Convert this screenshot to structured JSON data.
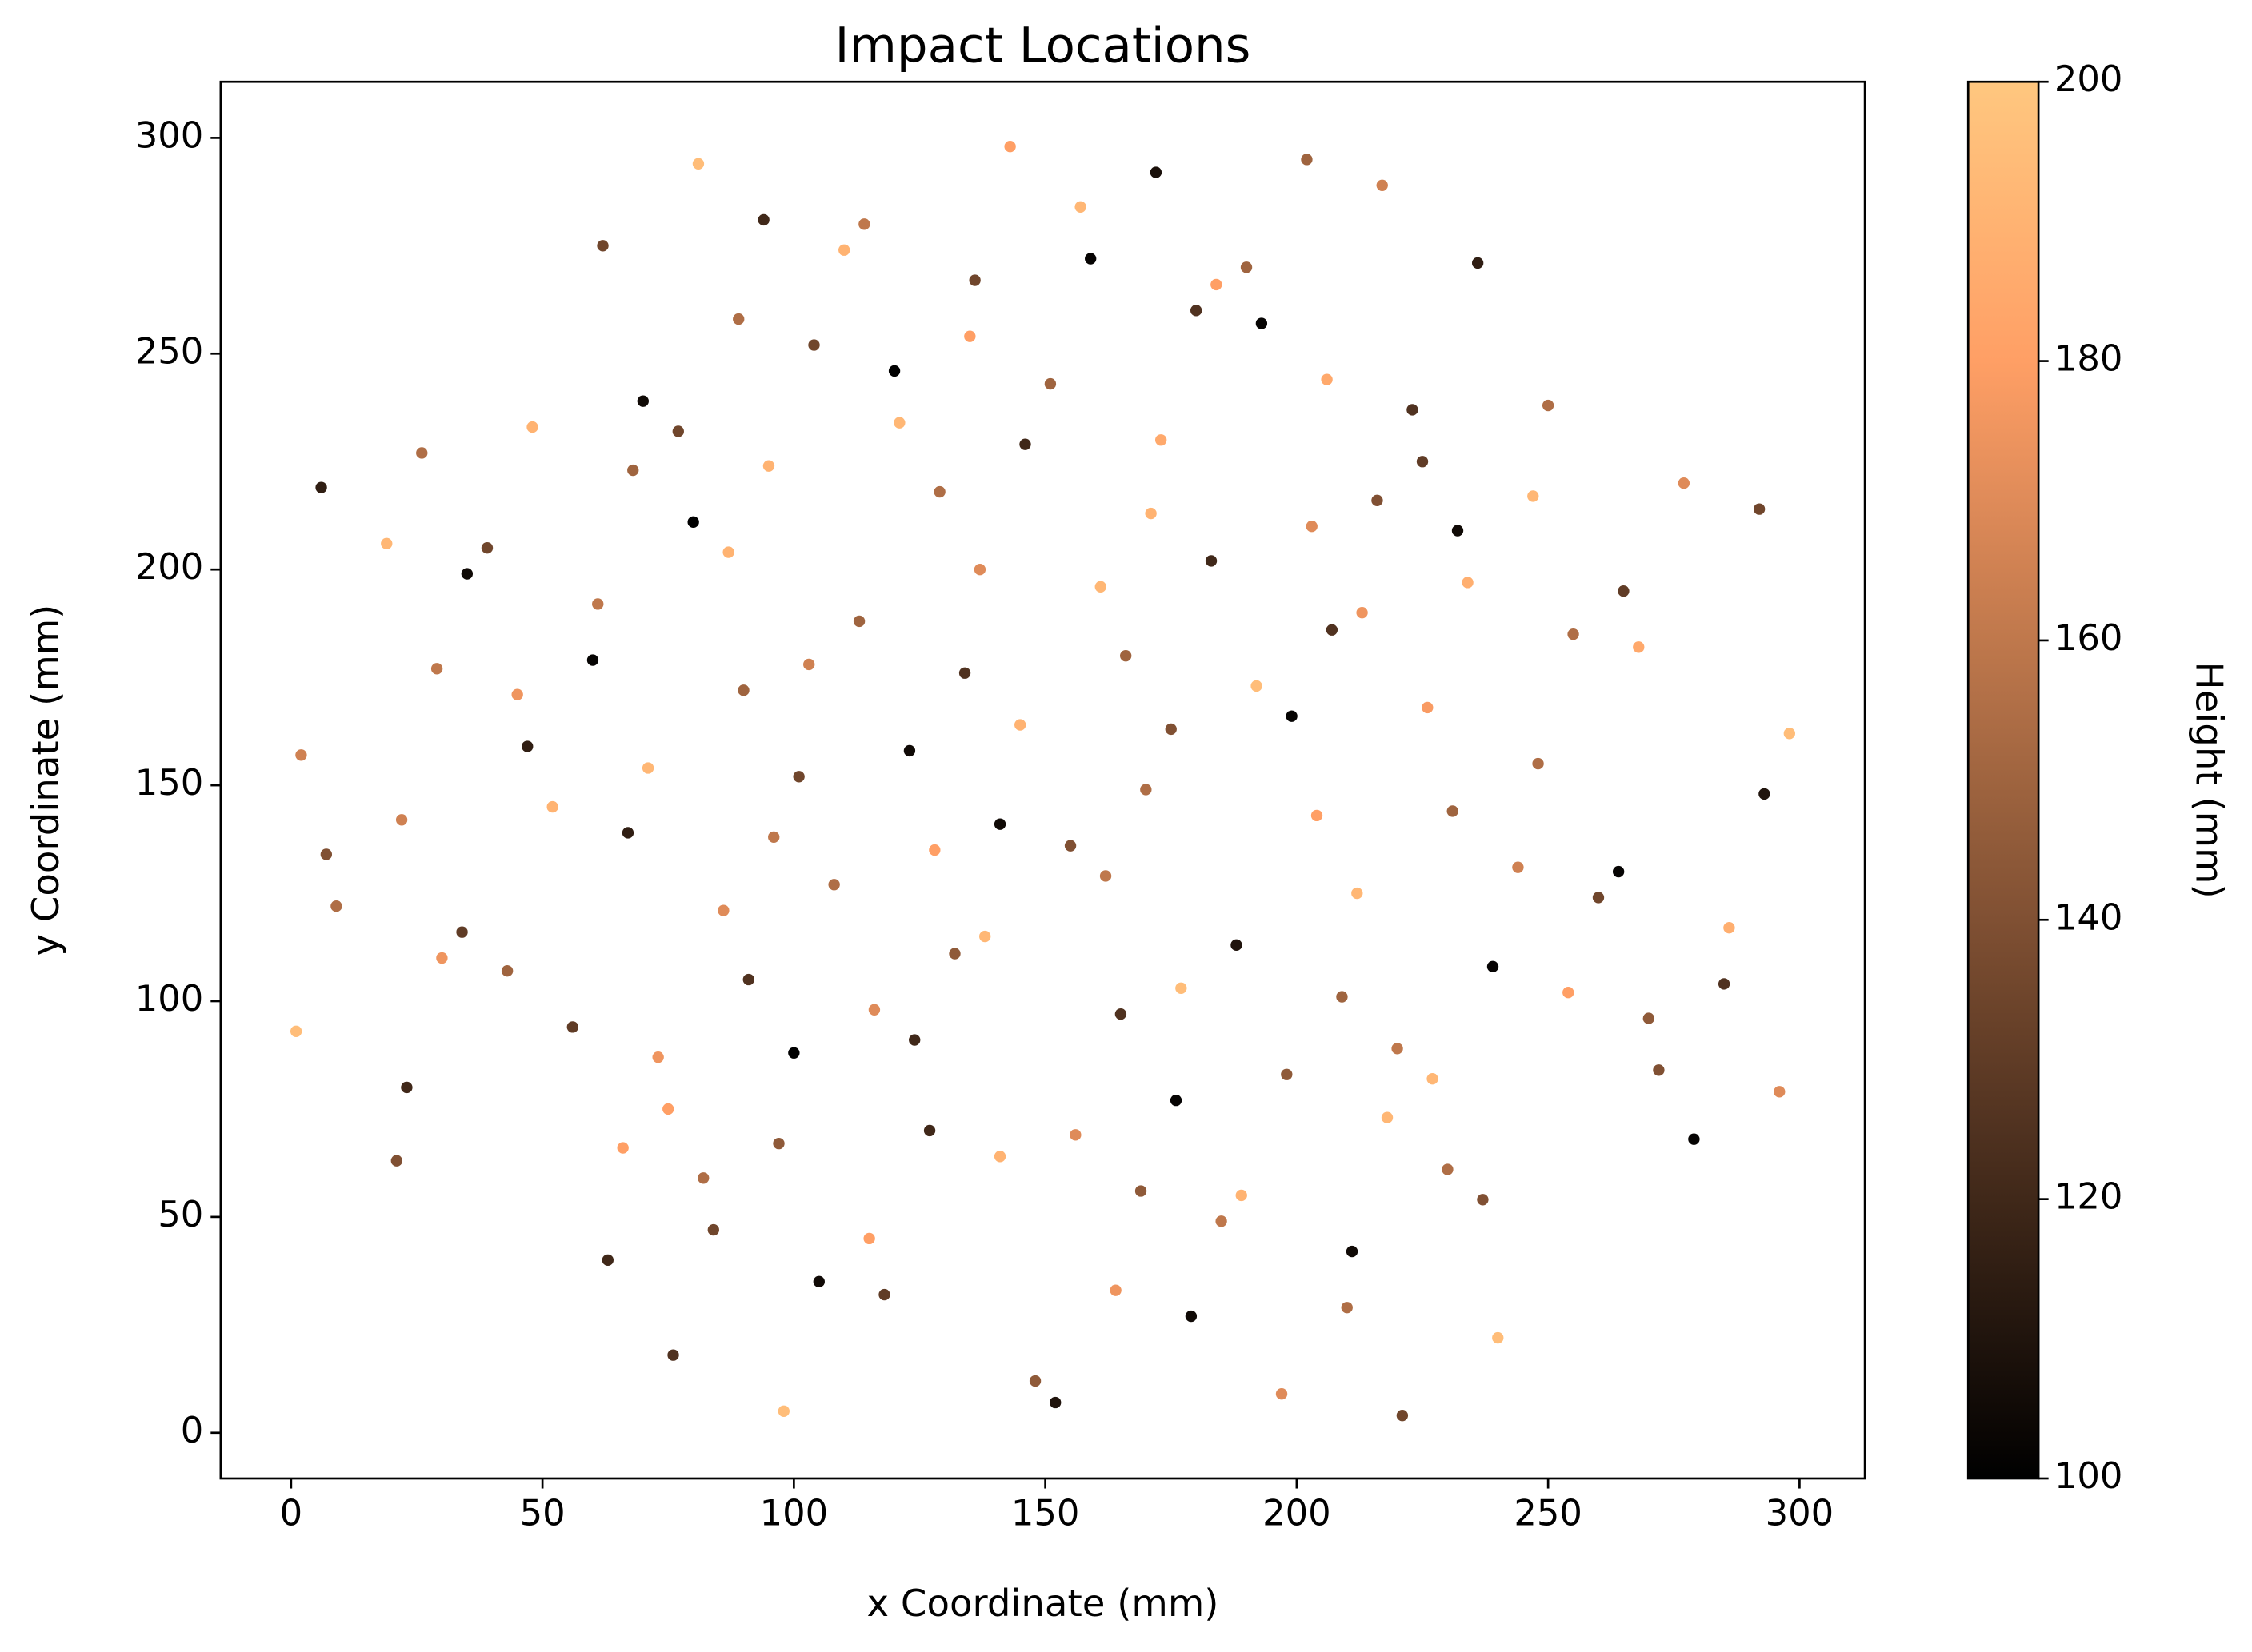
{
  "chart_data": {
    "type": "scatter",
    "title": "Impact Locations",
    "xlabel": "x Coordinate (mm)",
    "ylabel": "y Coordinate (mm)",
    "colorbar_label": "Height (mm)",
    "colormap": "copper",
    "x": [
      81,
      143,
      202,
      172,
      217,
      94,
      114,
      157,
      62,
      110,
      159,
      190,
      236,
      136,
      184,
      180,
      193,
      89,
      104,
      135,
      120,
      206,
      151,
      70,
      223,
      250,
      77,
      121,
      48,
      146,
      173,
      26,
      95,
      68,
      225,
      277,
      6,
      129,
      216,
      247,
      292,
      171,
      80,
      203,
      232,
      19,
      39,
      87,
      183,
      137,
      35,
      234,
      161,
      265,
      61,
      213,
      113,
      207,
      255,
      268,
      60,
      166,
      103,
      29,
      134,
      192,
      90,
      45,
      226,
      199,
      145,
      175,
      298,
      47,
      123,
      2,
      248,
      71,
      101,
      170,
      293,
      52,
      231,
      204,
      22,
      141,
      67,
      96,
      155,
      128,
      7,
      244,
      162,
      264,
      108,
      212,
      260,
      9,
      86,
      286,
      34,
      138,
      188,
      132,
      30,
      239,
      43,
      91,
      285,
      177,
      254,
      1,
      209,
      116,
      165,
      270,
      56,
      124,
      220,
      100,
      73,
      198,
      227,
      272,
      23,
      296,
      176,
      75,
      218,
      127,
      156,
      279,
      66,
      97,
      141,
      21,
      230,
      82,
      189,
      169,
      237,
      185,
      84,
      115,
      211,
      63,
      105,
      164,
      118,
      210,
      179,
      240,
      76,
      148,
      197,
      152,
      221,
      98
    ],
    "y": [
      294,
      298,
      295,
      292,
      289,
      281,
      280,
      284,
      275,
      274,
      272,
      270,
      271,
      267,
      266,
      260,
      257,
      258,
      252,
      254,
      246,
      244,
      243,
      239,
      237,
      238,
      232,
      234,
      233,
      229,
      230,
      227,
      224,
      223,
      225,
      220,
      219,
      218,
      216,
      217,
      214,
      213,
      211,
      210,
      209,
      206,
      205,
      204,
      202,
      200,
      199,
      197,
      196,
      195,
      192,
      190,
      188,
      186,
      185,
      182,
      179,
      180,
      178,
      177,
      176,
      173,
      172,
      171,
      168,
      166,
      164,
      163,
      162,
      159,
      158,
      157,
      155,
      154,
      152,
      149,
      148,
      145,
      144,
      143,
      142,
      141,
      139,
      138,
      136,
      135,
      134,
      131,
      129,
      130,
      127,
      125,
      124,
      122,
      121,
      117,
      116,
      115,
      113,
      111,
      110,
      108,
      107,
      105,
      104,
      103,
      102,
      93,
      101,
      98,
      97,
      96,
      94,
      91,
      89,
      88,
      87,
      83,
      82,
      84,
      80,
      79,
      77,
      75,
      73,
      70,
      69,
      68,
      66,
      67,
      64,
      63,
      61,
      59,
      55,
      56,
      54,
      49,
      47,
      45,
      42,
      40,
      35,
      33,
      32,
      29,
      27,
      22,
      18,
      12,
      9,
      7,
      4,
      5
    ],
    "c": [
      195,
      180,
      150,
      108,
      165,
      120,
      160,
      192,
      135,
      190,
      102,
      150,
      115,
      135,
      180,
      125,
      102,
      155,
      135,
      180,
      100,
      185,
      150,
      105,
      125,
      155,
      135,
      192,
      190,
      120,
      185,
      155,
      190,
      150,
      130,
      170,
      115,
      155,
      140,
      192,
      135,
      190,
      100,
      170,
      105,
      192,
      135,
      190,
      120,
      170,
      105,
      188,
      192,
      130,
      160,
      175,
      150,
      125,
      155,
      185,
      102,
      150,
      165,
      160,
      125,
      195,
      150,
      175,
      178,
      102,
      190,
      140,
      195,
      115,
      105,
      165,
      155,
      192,
      135,
      155,
      110,
      190,
      150,
      180,
      165,
      105,
      115,
      160,
      140,
      180,
      140,
      165,
      160,
      102,
      155,
      192,
      135,
      155,
      170,
      188,
      130,
      192,
      110,
      145,
      175,
      102,
      150,
      125,
      125,
      195,
      180,
      195,
      150,
      170,
      125,
      145,
      130,
      120,
      160,
      100,
      175,
      145,
      192,
      140,
      120,
      170,
      102,
      180,
      192,
      120,
      170,
      102,
      180,
      145,
      190,
      140,
      155,
      155,
      190,
      145,
      140,
      160,
      135,
      180,
      105,
      120,
      105,
      175,
      130,
      155,
      105,
      195,
      125,
      145,
      170,
      110,
      135,
      195
    ],
    "xlim": [
      -14,
      313
    ],
    "ylim": [
      -10.6,
      313
    ],
    "xticks": [
      0,
      50,
      100,
      150,
      200,
      250,
      300
    ],
    "yticks": [
      0,
      50,
      100,
      150,
      200,
      250,
      300
    ],
    "clim": [
      100,
      200
    ],
    "cticks": [
      100,
      120,
      140,
      160,
      180,
      200
    ]
  }
}
